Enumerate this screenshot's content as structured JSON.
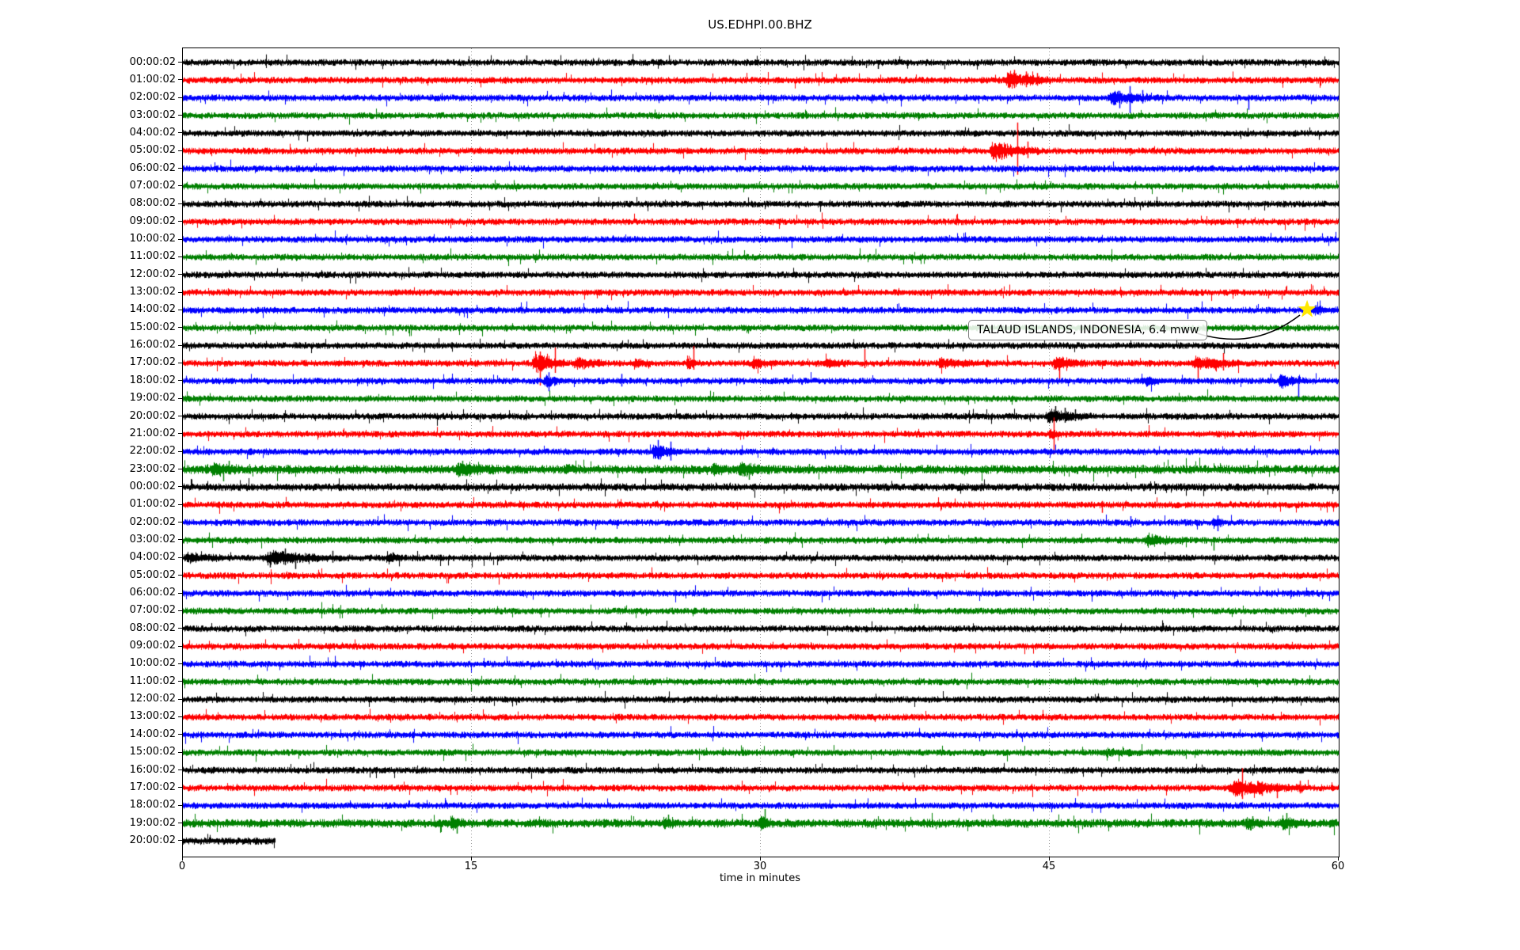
{
  "title": "US.EDHPI.00.BHZ",
  "axis": {
    "xlabel": "time in minutes",
    "ticks": [
      "0",
      "15",
      "30",
      "45",
      "60"
    ]
  },
  "annotation": {
    "text": "TALAUD ISLANDS, INDONESIA, 6.4 mww",
    "star_row": 14,
    "star_minute": 58.4,
    "star_color": "#ffe800",
    "arrow_color": "#000000"
  },
  "chart_data": {
    "type": "line",
    "variant": "seismogram-dayplot",
    "title": "US.EDHPI.00.BHZ",
    "xlabel": "time in minutes",
    "x_range": [
      0,
      60
    ],
    "x_ticks": [
      0,
      15,
      30,
      45,
      60
    ],
    "minutes_per_row": 60,
    "grid": "vertical-dotted-at-15-30-45",
    "colors": {
      "black": "#000000",
      "red": "#ff0000",
      "blue": "#0000ff",
      "green": "#008000"
    },
    "color_cycle": [
      "black",
      "red",
      "blue",
      "green"
    ],
    "rows": [
      {
        "label": "00:00:02",
        "color": "black",
        "end": 60,
        "noise": 1.0,
        "events": [],
        "spikes": [
          [
            17.85,
            9,
            3
          ],
          [
            36.1,
            3,
            8
          ]
        ]
      },
      {
        "label": "01:00:02",
        "color": "red",
        "end": 60,
        "noise": 1.0,
        "events": [
          [
            42.6,
            45.0,
            11
          ]
        ],
        "spikes": [
          [
            43.15,
            13,
            10
          ],
          [
            43.75,
            11,
            9
          ],
          [
            44.35,
            9,
            7
          ]
        ]
      },
      {
        "label": "02:00:02",
        "color": "blue",
        "end": 60,
        "noise": 1.0,
        "events": [
          [
            48.0,
            50.6,
            8
          ]
        ],
        "spikes": [
          [
            48.6,
            9,
            13
          ],
          [
            49.15,
            15,
            19
          ],
          [
            49.8,
            10,
            7
          ],
          [
            55.3,
            4,
            15
          ]
        ]
      },
      {
        "label": "03:00:02",
        "color": "green",
        "end": 60,
        "noise": 1.0,
        "events": [],
        "spikes": []
      },
      {
        "label": "04:00:02",
        "color": "black",
        "end": 60,
        "noise": 1.0,
        "events": [],
        "spikes": []
      },
      {
        "label": "05:00:02",
        "color": "red",
        "end": 60,
        "noise": 1.0,
        "events": [
          [
            41.8,
            44.4,
            12
          ]
        ],
        "spikes": [
          [
            42.5,
            9,
            11
          ],
          [
            43.3,
            36,
            30
          ],
          [
            43.85,
            12,
            9
          ]
        ]
      },
      {
        "label": "06:00:02",
        "color": "blue",
        "end": 60,
        "noise": 1.0,
        "events": [],
        "spikes": []
      },
      {
        "label": "07:00:02",
        "color": "green",
        "end": 60,
        "noise": 1.0,
        "events": [],
        "spikes": []
      },
      {
        "label": "08:00:02",
        "color": "black",
        "end": 60,
        "noise": 1.0,
        "events": [],
        "spikes": []
      },
      {
        "label": "09:00:02",
        "color": "red",
        "end": 60,
        "noise": 1.0,
        "events": [],
        "spikes": []
      },
      {
        "label": "10:00:02",
        "color": "blue",
        "end": 60,
        "noise": 1.0,
        "events": [],
        "spikes": []
      },
      {
        "label": "11:00:02",
        "color": "green",
        "end": 60,
        "noise": 1.0,
        "events": [],
        "spikes": []
      },
      {
        "label": "12:00:02",
        "color": "black",
        "end": 60,
        "noise": 1.0,
        "events": [],
        "spikes": []
      },
      {
        "label": "13:00:02",
        "color": "red",
        "end": 60,
        "noise": 1.0,
        "events": [],
        "spikes": []
      },
      {
        "label": "14:00:02",
        "color": "blue",
        "end": 60,
        "noise": 1.0,
        "events": [
          [
            58.6,
            60,
            4
          ]
        ],
        "spikes": []
      },
      {
        "label": "15:00:02",
        "color": "green",
        "end": 60,
        "noise": 1.0,
        "events": [],
        "spikes": []
      },
      {
        "label": "16:00:02",
        "color": "black",
        "end": 60,
        "noise": 1.0,
        "events": [],
        "spikes": []
      },
      {
        "label": "17:00:02",
        "color": "red",
        "end": 60,
        "noise": 1.0,
        "events": [
          [
            18.1,
            19.9,
            14
          ],
          [
            20.3,
            21.9,
            7
          ],
          [
            23.3,
            24.4,
            5
          ],
          [
            26.1,
            26.8,
            8
          ],
          [
            29.5,
            30.6,
            7
          ],
          [
            33.2,
            34.9,
            4
          ],
          [
            39.0,
            41.9,
            5
          ],
          [
            45.1,
            46.9,
            8
          ],
          [
            52.3,
            55.1,
            8
          ]
        ],
        "spikes": [
          [
            18.55,
            15,
            28
          ],
          [
            19.3,
            20,
            12
          ],
          [
            26.5,
            22,
            8
          ],
          [
            35.4,
            18,
            6
          ],
          [
            45.5,
            8,
            24
          ],
          [
            52.7,
            6,
            20
          ],
          [
            54.0,
            13,
            9
          ]
        ]
      },
      {
        "label": "18:00:02",
        "color": "blue",
        "end": 60,
        "noise": 1.0,
        "events": [
          [
            18.7,
            19.6,
            9
          ],
          [
            49.9,
            50.8,
            6
          ],
          [
            56.8,
            58.3,
            8
          ]
        ],
        "spikes": [
          [
            19.0,
            11,
            13
          ],
          [
            22.75,
            9,
            7
          ],
          [
            57.9,
            6,
            22
          ]
        ]
      },
      {
        "label": "19:00:02",
        "color": "green",
        "end": 60,
        "noise": 1.0,
        "events": [],
        "spikes": []
      },
      {
        "label": "20:00:02",
        "color": "black",
        "end": 60,
        "noise": 1.0,
        "events": [
          [
            44.7,
            47.2,
            8
          ]
        ],
        "spikes": [
          [
            45.3,
            13,
            6
          ],
          [
            45.8,
            11,
            8
          ],
          [
            46.3,
            9,
            6
          ]
        ]
      },
      {
        "label": "21:00:02",
        "color": "red",
        "end": 60,
        "noise": 1.0,
        "events": [
          [
            44.9,
            45.6,
            5
          ]
        ],
        "spikes": [
          [
            45.2,
            21,
            25
          ]
        ]
      },
      {
        "label": "22:00:02",
        "color": "blue",
        "end": 60,
        "noise": 1.0,
        "events": [
          [
            24.3,
            25.9,
            10
          ]
        ],
        "spikes": [
          [
            24.65,
            15,
            9
          ],
          [
            25.3,
            13,
            11
          ]
        ]
      },
      {
        "label": "23:00:02",
        "color": "green",
        "end": 60,
        "noise": 1.35,
        "events": [
          [
            1.4,
            2.9,
            8
          ],
          [
            14.0,
            16.5,
            7
          ],
          [
            19.8,
            20.6,
            4
          ],
          [
            27.4,
            28.4,
            6
          ],
          [
            28.8,
            30.5,
            7
          ]
        ],
        "spikes": [
          [
            2.1,
            6,
            15
          ],
          [
            2.4,
            11,
            6
          ],
          [
            14.5,
            11,
            8
          ],
          [
            29.4,
            6,
            13
          ],
          [
            32.5,
            7,
            5
          ]
        ]
      },
      {
        "label": "00:00:02",
        "color": "black",
        "end": 60,
        "noise": 1.15,
        "events": [],
        "spikes": []
      },
      {
        "label": "01:00:02",
        "color": "red",
        "end": 60,
        "noise": 1.0,
        "events": [],
        "spikes": [
          [
            47.7,
            5,
            10
          ]
        ]
      },
      {
        "label": "02:00:02",
        "color": "blue",
        "end": 60,
        "noise": 1.0,
        "events": [
          [
            53.4,
            54.2,
            5
          ]
        ],
        "spikes": [
          [
            49.2,
            8,
            6
          ],
          [
            53.7,
            9,
            11
          ]
        ]
      },
      {
        "label": "03:00:02",
        "color": "green",
        "end": 60,
        "noise": 1.0,
        "events": [
          [
            49.8,
            52.2,
            6
          ]
        ],
        "spikes": [
          [
            50.3,
            8,
            5
          ],
          [
            53.5,
            4,
            13
          ]
        ]
      },
      {
        "label": "04:00:02",
        "color": "black",
        "end": 60,
        "noise": 1.0,
        "events": [
          [
            0,
            2.4,
            5
          ],
          [
            4.1,
            8.1,
            8
          ],
          [
            10.5,
            11.4,
            6
          ]
        ],
        "spikes": [
          [
            4.5,
            8,
            12
          ],
          [
            5.3,
            12,
            9
          ],
          [
            5.85,
            7,
            14
          ],
          [
            7.75,
            9,
            6
          ],
          [
            10.9,
            7,
            5
          ]
        ]
      },
      {
        "label": "05:00:02",
        "color": "red",
        "end": 60,
        "noise": 1.0,
        "events": [],
        "spikes": []
      },
      {
        "label": "06:00:02",
        "color": "blue",
        "end": 60,
        "noise": 1.0,
        "events": [],
        "spikes": []
      },
      {
        "label": "07:00:02",
        "color": "green",
        "end": 60,
        "noise": 1.0,
        "events": [],
        "spikes": []
      },
      {
        "label": "08:00:02",
        "color": "black",
        "end": 60,
        "noise": 1.0,
        "events": [],
        "spikes": []
      },
      {
        "label": "09:00:02",
        "color": "red",
        "end": 60,
        "noise": 1.0,
        "events": [],
        "spikes": []
      },
      {
        "label": "10:00:02",
        "color": "blue",
        "end": 60,
        "noise": 1.0,
        "events": [],
        "spikes": []
      },
      {
        "label": "11:00:02",
        "color": "green",
        "end": 60,
        "noise": 1.0,
        "events": [],
        "spikes": []
      },
      {
        "label": "12:00:02",
        "color": "black",
        "end": 60,
        "noise": 1.0,
        "events": [],
        "spikes": []
      },
      {
        "label": "13:00:02",
        "color": "red",
        "end": 60,
        "noise": 1.0,
        "events": [],
        "spikes": []
      },
      {
        "label": "14:00:02",
        "color": "blue",
        "end": 60,
        "noise": 1.0,
        "events": [],
        "spikes": []
      },
      {
        "label": "15:00:02",
        "color": "green",
        "end": 60,
        "noise": 1.0,
        "events": [
          [
            47.5,
            51.5,
            2.5
          ]
        ],
        "spikes": []
      },
      {
        "label": "16:00:02",
        "color": "black",
        "end": 60,
        "noise": 1.0,
        "events": [],
        "spikes": []
      },
      {
        "label": "17:00:02",
        "color": "red",
        "end": 60,
        "noise": 1.0,
        "events": [
          [
            54.2,
            58.4,
            10
          ]
        ],
        "spikes": [
          [
            55.0,
            25,
            14
          ],
          [
            56.0,
            8,
            10
          ],
          [
            56.8,
            6,
            13
          ],
          [
            58.0,
            9,
            7
          ]
        ]
      },
      {
        "label": "18:00:02",
        "color": "blue",
        "end": 60,
        "noise": 1.0,
        "events": [],
        "spikes": [
          [
            55.0,
            5,
            4
          ]
        ]
      },
      {
        "label": "19:00:02",
        "color": "green",
        "end": 60,
        "noise": 1.3,
        "events": [
          [
            13.8,
            14.7,
            7
          ],
          [
            24.9,
            25.6,
            6
          ],
          [
            29.9,
            30.7,
            8
          ],
          [
            55.1,
            56.1,
            7
          ],
          [
            56.9,
            58.4,
            6
          ]
        ],
        "spikes": [
          [
            14.2,
            6,
            13
          ],
          [
            25.2,
            11,
            5
          ],
          [
            30.2,
            18,
            6
          ],
          [
            55.5,
            9,
            7
          ],
          [
            57.3,
            13,
            6
          ]
        ]
      },
      {
        "label": "20:00:02",
        "color": "black",
        "end": 4.8,
        "noise": 1.1,
        "events": [],
        "spikes": []
      }
    ]
  }
}
